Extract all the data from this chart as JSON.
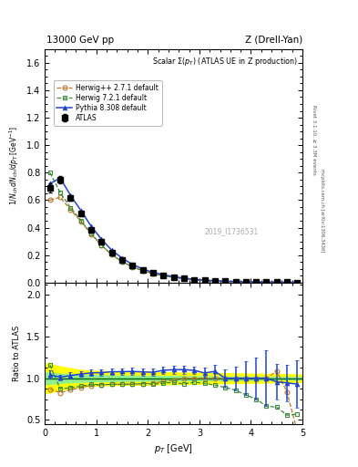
{
  "title_left": "13000 GeV pp",
  "title_right": "Z (Drell-Yan)",
  "plot_title": "Scalar Σ(p_{T}) (ATLAS UE in Z production)",
  "xlabel": "p_{T} [GeV]",
  "ylabel_main": "1/N_{ch} dN_{ch}/dp_{T} [GeV⁻¹]",
  "ylabel_ratio": "Ratio to ATLAS",
  "right_label_top": "Rivet 3.1.10, ≥ 3.3M events",
  "right_label_mid": "mcplots.cern.ch [arXiv:1306.3436]",
  "ref_id": "2019_I1736531",
  "atlas_x": [
    0.1,
    0.3,
    0.5,
    0.7,
    0.9,
    1.1,
    1.3,
    1.5,
    1.7,
    1.9,
    2.1,
    2.3,
    2.5,
    2.7,
    2.9,
    3.1,
    3.3,
    3.5,
    3.7,
    3.9,
    4.1,
    4.3,
    4.5,
    4.7,
    4.9
  ],
  "atlas_y": [
    0.69,
    0.75,
    0.615,
    0.5,
    0.385,
    0.295,
    0.218,
    0.165,
    0.122,
    0.092,
    0.069,
    0.052,
    0.039,
    0.029,
    0.021,
    0.016,
    0.012,
    0.009,
    0.007,
    0.005,
    0.004,
    0.003,
    0.0023,
    0.0018,
    0.0014
  ],
  "atlas_yerr_lo": [
    0.035,
    0.025,
    0.022,
    0.018,
    0.014,
    0.011,
    0.008,
    0.007,
    0.005,
    0.004,
    0.003,
    0.0025,
    0.002,
    0.0015,
    0.001,
    0.0008,
    0.0006,
    0.0005,
    0.0004,
    0.0003,
    0.0002,
    0.00018,
    0.00014,
    0.0001,
    8e-05
  ],
  "atlas_yerr_hi": [
    0.035,
    0.025,
    0.022,
    0.018,
    0.014,
    0.011,
    0.008,
    0.007,
    0.005,
    0.004,
    0.003,
    0.0025,
    0.002,
    0.0015,
    0.001,
    0.0008,
    0.0006,
    0.0005,
    0.0004,
    0.0003,
    0.0002,
    0.00018,
    0.00014,
    0.0001,
    8e-05
  ],
  "herwig_x": [
    0.1,
    0.3,
    0.5,
    0.7,
    0.9,
    1.1,
    1.3,
    1.5,
    1.7,
    1.9,
    2.1,
    2.3,
    2.5,
    2.7,
    2.9,
    3.1,
    3.3,
    3.5,
    3.7,
    3.9,
    4.1,
    4.3,
    4.5,
    4.7,
    4.9
  ],
  "herwig_y": [
    0.6,
    0.62,
    0.53,
    0.445,
    0.352,
    0.272,
    0.202,
    0.153,
    0.114,
    0.086,
    0.065,
    0.05,
    0.038,
    0.029,
    0.021,
    0.016,
    0.012,
    0.009,
    0.007,
    0.005,
    0.004,
    0.003,
    0.0025,
    0.0015,
    0.0005
  ],
  "herwig72_x": [
    0.1,
    0.3,
    0.5,
    0.7,
    0.9,
    1.1,
    1.3,
    1.5,
    1.7,
    1.9,
    2.1,
    2.3,
    2.5,
    2.7,
    2.9,
    3.1,
    3.3,
    3.5,
    3.7,
    3.9,
    4.1,
    4.3,
    4.5,
    4.7,
    4.9
  ],
  "herwig72_y": [
    0.8,
    0.655,
    0.545,
    0.452,
    0.357,
    0.272,
    0.202,
    0.153,
    0.113,
    0.086,
    0.064,
    0.049,
    0.037,
    0.027,
    0.02,
    0.015,
    0.011,
    0.008,
    0.006,
    0.004,
    0.003,
    0.002,
    0.0015,
    0.001,
    0.0008
  ],
  "pythia_x": [
    0.1,
    0.3,
    0.5,
    0.7,
    0.9,
    1.1,
    1.3,
    1.5,
    1.7,
    1.9,
    2.1,
    2.3,
    2.5,
    2.7,
    2.9,
    3.1,
    3.3,
    3.5,
    3.7,
    3.9,
    4.1,
    4.3,
    4.5,
    4.7,
    4.9
  ],
  "pythia_y": [
    0.72,
    0.76,
    0.635,
    0.525,
    0.41,
    0.315,
    0.235,
    0.178,
    0.132,
    0.099,
    0.074,
    0.057,
    0.043,
    0.032,
    0.023,
    0.017,
    0.013,
    0.009,
    0.007,
    0.005,
    0.004,
    0.003,
    0.0022,
    0.0017,
    0.0013
  ],
  "ratio_herwig_y": [
    0.87,
    0.825,
    0.863,
    0.89,
    0.914,
    0.922,
    0.927,
    0.927,
    0.934,
    0.935,
    0.942,
    0.962,
    0.974,
    1.0,
    1.0,
    1.0,
    1.0,
    1.0,
    1.0,
    1.0,
    1.0,
    1.0,
    1.087,
    0.833,
    0.357
  ],
  "ratio_herwig72_y": [
    1.16,
    0.873,
    0.886,
    0.904,
    0.927,
    0.922,
    0.927,
    0.927,
    0.926,
    0.935,
    0.928,
    0.942,
    0.949,
    0.931,
    0.952,
    0.9375,
    0.917,
    0.889,
    0.857,
    0.8,
    0.75,
    0.667,
    0.652,
    0.556,
    0.571
  ],
  "ratio_pythia_y": [
    1.043,
    1.013,
    1.033,
    1.05,
    1.065,
    1.068,
    1.078,
    1.079,
    1.082,
    1.076,
    1.072,
    1.096,
    1.103,
    1.103,
    1.095,
    1.063,
    1.083,
    1.0,
    1.0,
    1.0,
    1.0,
    1.0,
    0.957,
    0.944,
    0.929
  ],
  "ratio_pythia_yerr_lo": [
    0.05,
    0.033,
    0.036,
    0.036,
    0.036,
    0.037,
    0.037,
    0.042,
    0.041,
    0.043,
    0.043,
    0.048,
    0.051,
    0.052,
    0.048,
    0.063,
    0.083,
    0.111,
    0.143,
    0.2,
    0.25,
    0.333,
    0.217,
    0.222,
    0.286
  ],
  "ratio_pythia_yerr_hi": [
    0.05,
    0.033,
    0.036,
    0.036,
    0.036,
    0.037,
    0.037,
    0.042,
    0.041,
    0.043,
    0.043,
    0.048,
    0.051,
    0.052,
    0.048,
    0.063,
    0.083,
    0.111,
    0.143,
    0.2,
    0.25,
    0.333,
    0.217,
    0.222,
    0.286
  ],
  "band_x": [
    0.0,
    0.1,
    0.3,
    0.5,
    0.7,
    0.9,
    1.1,
    1.3,
    1.5,
    1.7,
    1.9,
    2.1,
    2.3,
    2.5,
    2.7,
    2.9,
    3.1,
    3.3,
    3.5,
    3.7,
    3.9,
    4.1,
    4.3,
    4.5,
    4.7,
    4.9,
    5.0
  ],
  "band_yellow_lo": [
    0.82,
    0.83,
    0.86,
    0.88,
    0.9,
    0.91,
    0.915,
    0.918,
    0.92,
    0.922,
    0.924,
    0.926,
    0.928,
    0.93,
    0.932,
    0.934,
    0.936,
    0.938,
    0.94,
    0.942,
    0.944,
    0.946,
    0.948,
    0.95,
    0.952,
    0.954,
    0.956
  ],
  "band_yellow_hi": [
    1.18,
    1.17,
    1.14,
    1.12,
    1.1,
    1.09,
    1.085,
    1.082,
    1.08,
    1.078,
    1.076,
    1.074,
    1.072,
    1.07,
    1.068,
    1.066,
    1.064,
    1.062,
    1.06,
    1.058,
    1.056,
    1.054,
    1.052,
    1.05,
    1.048,
    1.046,
    1.044
  ],
  "band_green_lo": [
    0.93,
    0.935,
    0.945,
    0.952,
    0.958,
    0.962,
    0.964,
    0.966,
    0.968,
    0.97,
    0.971,
    0.972,
    0.973,
    0.974,
    0.975,
    0.976,
    0.977,
    0.978,
    0.979,
    0.98,
    0.981,
    0.982,
    0.983,
    0.984,
    0.985,
    0.986,
    0.987
  ],
  "band_green_hi": [
    1.07,
    1.065,
    1.055,
    1.048,
    1.042,
    1.038,
    1.036,
    1.034,
    1.032,
    1.03,
    1.029,
    1.028,
    1.027,
    1.026,
    1.025,
    1.024,
    1.023,
    1.022,
    1.021,
    1.02,
    1.019,
    1.018,
    1.017,
    1.016,
    1.015,
    1.014,
    1.013
  ],
  "color_atlas": "#000000",
  "color_herwig": "#c07828",
  "color_herwig72": "#3a8a3a",
  "color_pythia": "#2244cc",
  "color_yellow": "#ffff00",
  "color_green": "#90ee90",
  "ylim_main": [
    0.0,
    1.7
  ],
  "ylim_ratio": [
    0.45,
    2.15
  ],
  "xlim": [
    0.0,
    5.0
  ],
  "yticks_ratio": [
    0.5,
    1.0,
    1.5,
    2.0
  ]
}
